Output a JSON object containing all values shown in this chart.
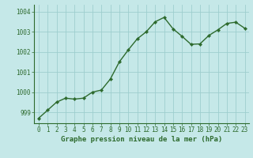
{
  "x": [
    0,
    1,
    2,
    3,
    4,
    5,
    6,
    7,
    8,
    9,
    10,
    11,
    12,
    13,
    14,
    15,
    16,
    17,
    18,
    19,
    20,
    21,
    22,
    23
  ],
  "y": [
    998.7,
    999.1,
    999.5,
    999.7,
    999.65,
    999.7,
    1000.0,
    1000.1,
    1000.65,
    1001.5,
    1002.1,
    1002.65,
    1003.0,
    1003.5,
    1003.72,
    1003.15,
    1002.78,
    1002.38,
    1002.4,
    1002.82,
    1003.1,
    1003.42,
    1003.48,
    1003.18
  ],
  "line_color": "#2d6a2d",
  "marker": "D",
  "marker_size": 2.2,
  "line_width": 1.0,
  "bg_color": "#c5e8e8",
  "grid_color": "#9ecece",
  "xlabel": "Graphe pression niveau de la mer (hPa)",
  "xlabel_color": "#2d6a2d",
  "xlabel_fontsize": 6.5,
  "tick_color": "#2d6a2d",
  "tick_fontsize": 5.5,
  "ytick_vals": [
    999,
    1000,
    1001,
    1002,
    1003,
    1004
  ],
  "ytick_labels": [
    "999",
    "1000",
    "1001",
    "1002",
    "1003",
    "1004"
  ],
  "ylim": [
    998.45,
    1004.35
  ],
  "xlim": [
    -0.5,
    23.5
  ]
}
